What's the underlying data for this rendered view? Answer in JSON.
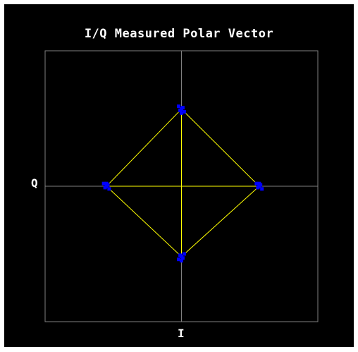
{
  "chart_data": {
    "type": "scatter",
    "title": "I/Q Measured Polar Vector",
    "xlabel": "I",
    "ylabel": "Q",
    "xlim": [
      -1.0,
      1.0
    ],
    "ylim": [
      -1.0,
      1.0
    ],
    "grid": "center-cross",
    "colors": {
      "background": "#000000",
      "frame": "#808080",
      "trace": "#ffff00",
      "symbols": "#0000ff"
    },
    "series": [
      {
        "type": "line",
        "values": [
          [
            0.0,
            0.57
          ],
          [
            0.57,
            0.0
          ],
          [
            0.0,
            -0.52
          ],
          [
            -0.55,
            0.0
          ],
          [
            0.0,
            0.57
          ],
          [
            0.57,
            0.0
          ],
          [
            -0.55,
            0.0
          ],
          [
            0.57,
            0.0
          ],
          [
            0.0,
            -0.52
          ],
          [
            0.0,
            0.57
          ],
          [
            -0.55,
            0.0
          ],
          [
            0.0,
            -0.52
          ],
          [
            0.57,
            0.0
          ],
          [
            -0.55,
            0.0
          ],
          [
            0.0,
            0.57
          ],
          [
            0.0,
            -0.52
          ],
          [
            -0.55,
            0.0
          ],
          [
            0.57,
            0.0
          ],
          [
            0.0,
            0.57
          ],
          [
            -0.55,
            0.0
          ],
          [
            0.0,
            -0.52
          ],
          [
            0.57,
            0.0
          ],
          [
            0.0,
            0.57
          ],
          [
            0.0,
            -0.52
          ],
          [
            0.57,
            0.0
          ],
          [
            -0.55,
            0.0
          ],
          [
            0.0,
            -0.52
          ],
          [
            0.0,
            0.57
          ],
          [
            0.57,
            0.0
          ],
          [
            -0.55,
            0.0
          ],
          [
            0.0,
            0.57
          ],
          [
            0.57,
            0.0
          ],
          [
            0.0,
            -0.52
          ],
          [
            -0.55,
            0.0
          ],
          [
            0.57,
            0.0
          ],
          [
            0.0,
            0.57
          ],
          [
            0.0,
            -0.52
          ],
          [
            -0.55,
            0.0
          ],
          [
            0.0,
            0.57
          ],
          [
            0.57,
            0.0
          ],
          [
            -0.55,
            0.0
          ],
          [
            0.0,
            -0.52
          ],
          [
            0.57,
            0.0
          ],
          [
            0.0,
            0.57
          ],
          [
            -0.55,
            0.0
          ],
          [
            0.0,
            -0.52
          ],
          [
            0.0,
            0.57
          ],
          [
            0.57,
            0.0
          ],
          [
            -0.55,
            0.0
          ],
          [
            0.0,
            -0.52
          ]
        ]
      },
      {
        "type": "scatter",
        "values": [
          [
            0.0,
            0.57
          ],
          [
            0.01,
            0.58
          ],
          [
            -0.01,
            0.56
          ],
          [
            0.02,
            0.55
          ],
          [
            -0.02,
            0.59
          ],
          [
            0.0,
            0.54
          ],
          [
            0.57,
            0.0
          ],
          [
            0.58,
            0.01
          ],
          [
            0.56,
            -0.01
          ],
          [
            0.55,
            0.02
          ],
          [
            0.59,
            -0.02
          ],
          [
            0.57,
            0.02
          ],
          [
            0.0,
            -0.52
          ],
          [
            0.01,
            -0.53
          ],
          [
            -0.01,
            -0.51
          ],
          [
            0.02,
            -0.5
          ],
          [
            -0.02,
            -0.54
          ],
          [
            0.0,
            -0.55
          ],
          [
            -0.55,
            0.0
          ],
          [
            -0.54,
            0.01
          ],
          [
            -0.56,
            -0.01
          ],
          [
            -0.53,
            -0.02
          ],
          [
            -0.57,
            0.02
          ],
          [
            -0.55,
            0.02
          ]
        ]
      }
    ]
  }
}
